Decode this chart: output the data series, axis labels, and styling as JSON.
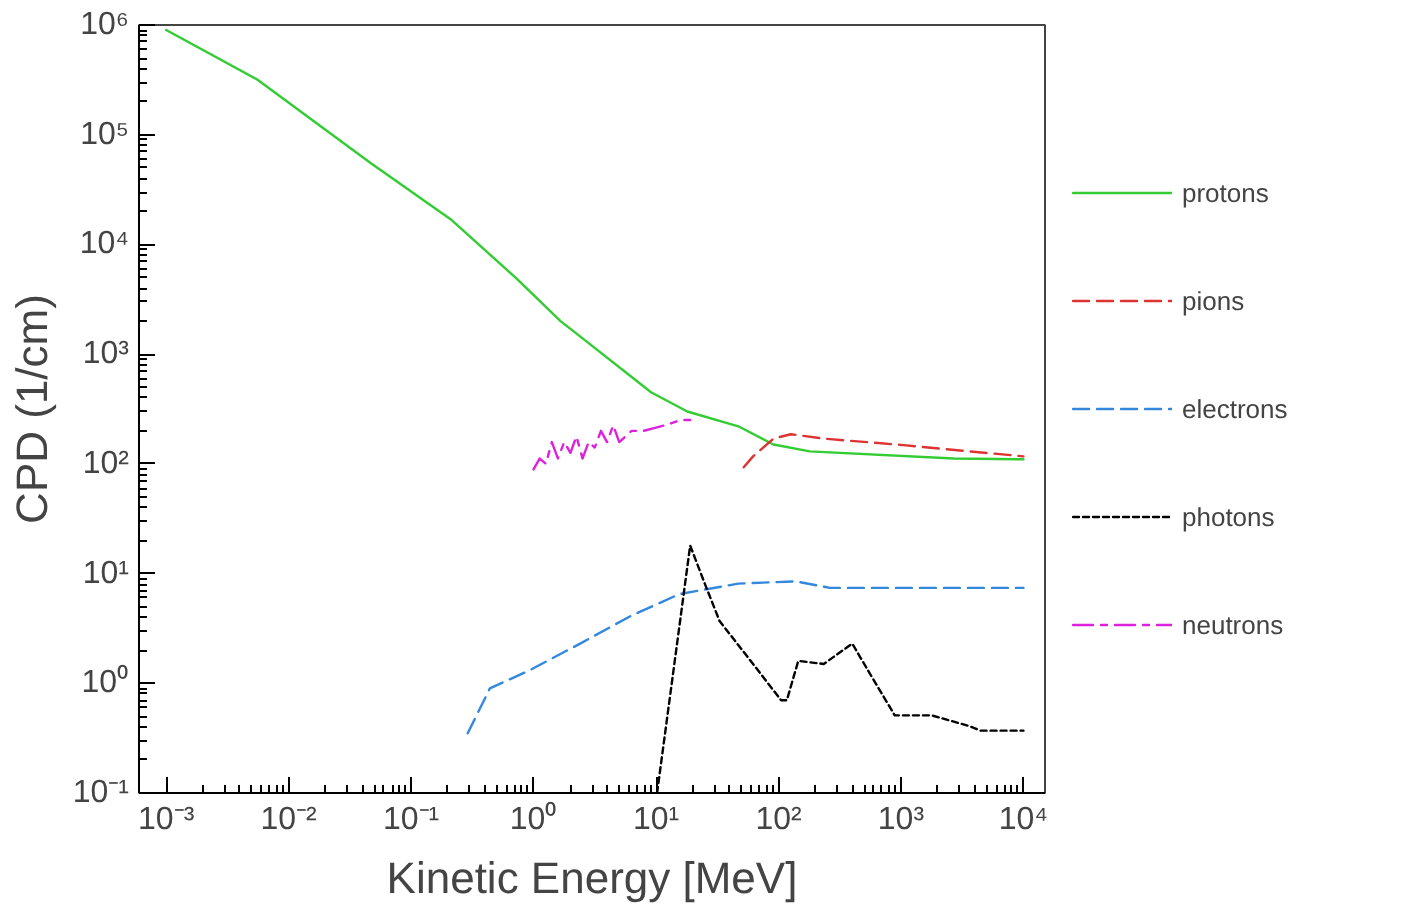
{
  "chart_data": {
    "type": "line",
    "xlabel": "Kinetic Energy [MeV]",
    "ylabel": "CPD (1/cm)",
    "log": "xy",
    "grid": false,
    "legend": "right",
    "xlim": [
      0.0006,
      15000
    ],
    "ylim": [
      0.1,
      1000000
    ],
    "xticks": [
      {
        "value": 0.001,
        "label": "10⁻³"
      },
      {
        "value": 0.01,
        "label": "10⁻²"
      },
      {
        "value": 0.1,
        "label": "10⁻¹"
      },
      {
        "value": 1,
        "label": "10⁰"
      },
      {
        "value": 10,
        "label": "10¹"
      },
      {
        "value": 100,
        "label": "10²"
      },
      {
        "value": 1000,
        "label": "10³"
      },
      {
        "value": 10000,
        "label": "10⁴"
      }
    ],
    "yticks": [
      {
        "value": 0.1,
        "label": "10⁻¹"
      },
      {
        "value": 1,
        "label": "10⁰"
      },
      {
        "value": 10,
        "label": "10¹"
      },
      {
        "value": 100,
        "label": "10²"
      },
      {
        "value": 1000,
        "label": "10³"
      },
      {
        "value": 10000,
        "label": "10⁴"
      },
      {
        "value": 100000,
        "label": "10⁵"
      },
      {
        "value": 1000000,
        "label": "10⁶"
      }
    ],
    "series": [
      {
        "name": "protons",
        "color": "#33cc33",
        "line_style": "solid",
        "x": [
          0.001,
          0.0055,
          0.047,
          0.21,
          0.71,
          1.66,
          2.5,
          9.1,
          18,
          47,
          91,
          180,
          2700,
          10000
        ],
        "values": [
          900000,
          320000,
          55000,
          17000,
          5000,
          2000,
          1400,
          450,
          300,
          220,
          150,
          130,
          112,
          110
        ]
      },
      {
        "name": "pions",
        "color": "#dd3333",
        "line_style": "dashed",
        "x": [
          52,
          62,
          91,
          126,
          234,
          1050,
          10000
        ],
        "values": [
          93,
          117,
          170,
          186,
          170,
          148,
          117
        ]
      },
      {
        "name": "electrons",
        "color": "#3388dd",
        "line_style": "dashed",
        "x": [
          0.29,
          0.44,
          0.91,
          2.4,
          6.2,
          15.5,
          47,
          138,
          263,
          10000
        ],
        "values": [
          0.35,
          0.9,
          1.3,
          2.3,
          4.1,
          6.5,
          8.1,
          8.5,
          7.4,
          7.4
        ]
      },
      {
        "name": "photons",
        "color": "#000000",
        "line_style": "dotted",
        "x": [
          10.2,
          19,
          25,
          33,
          62,
          105,
          117,
          145,
          234,
          400,
          590,
          890,
          1780,
          3550,
          4470,
          10000
        ],
        "values": [
          0.1,
          18,
          8.1,
          3.7,
          1.5,
          0.7,
          0.7,
          1.6,
          1.5,
          2.3,
          1.1,
          0.51,
          0.51,
          0.41,
          0.37,
          0.37
        ]
      },
      {
        "name": "neutrons",
        "color": "#dd22dd",
        "line_style": "dashdot",
        "x": [
          1.0,
          1.12,
          1.26,
          1.41,
          1.58,
          1.78,
          2.0,
          2.24,
          2.51,
          2.82,
          3.16,
          3.55,
          3.98,
          4.47,
          5.01,
          6.31,
          7.94,
          10,
          12.6,
          15.8,
          19
        ],
        "values": [
          89,
          112,
          100,
          158,
          112,
          158,
          126,
          178,
          112,
          158,
          141,
          200,
          158,
          224,
          158,
          200,
          200,
          214,
          229,
          251,
          251
        ]
      }
    ]
  }
}
